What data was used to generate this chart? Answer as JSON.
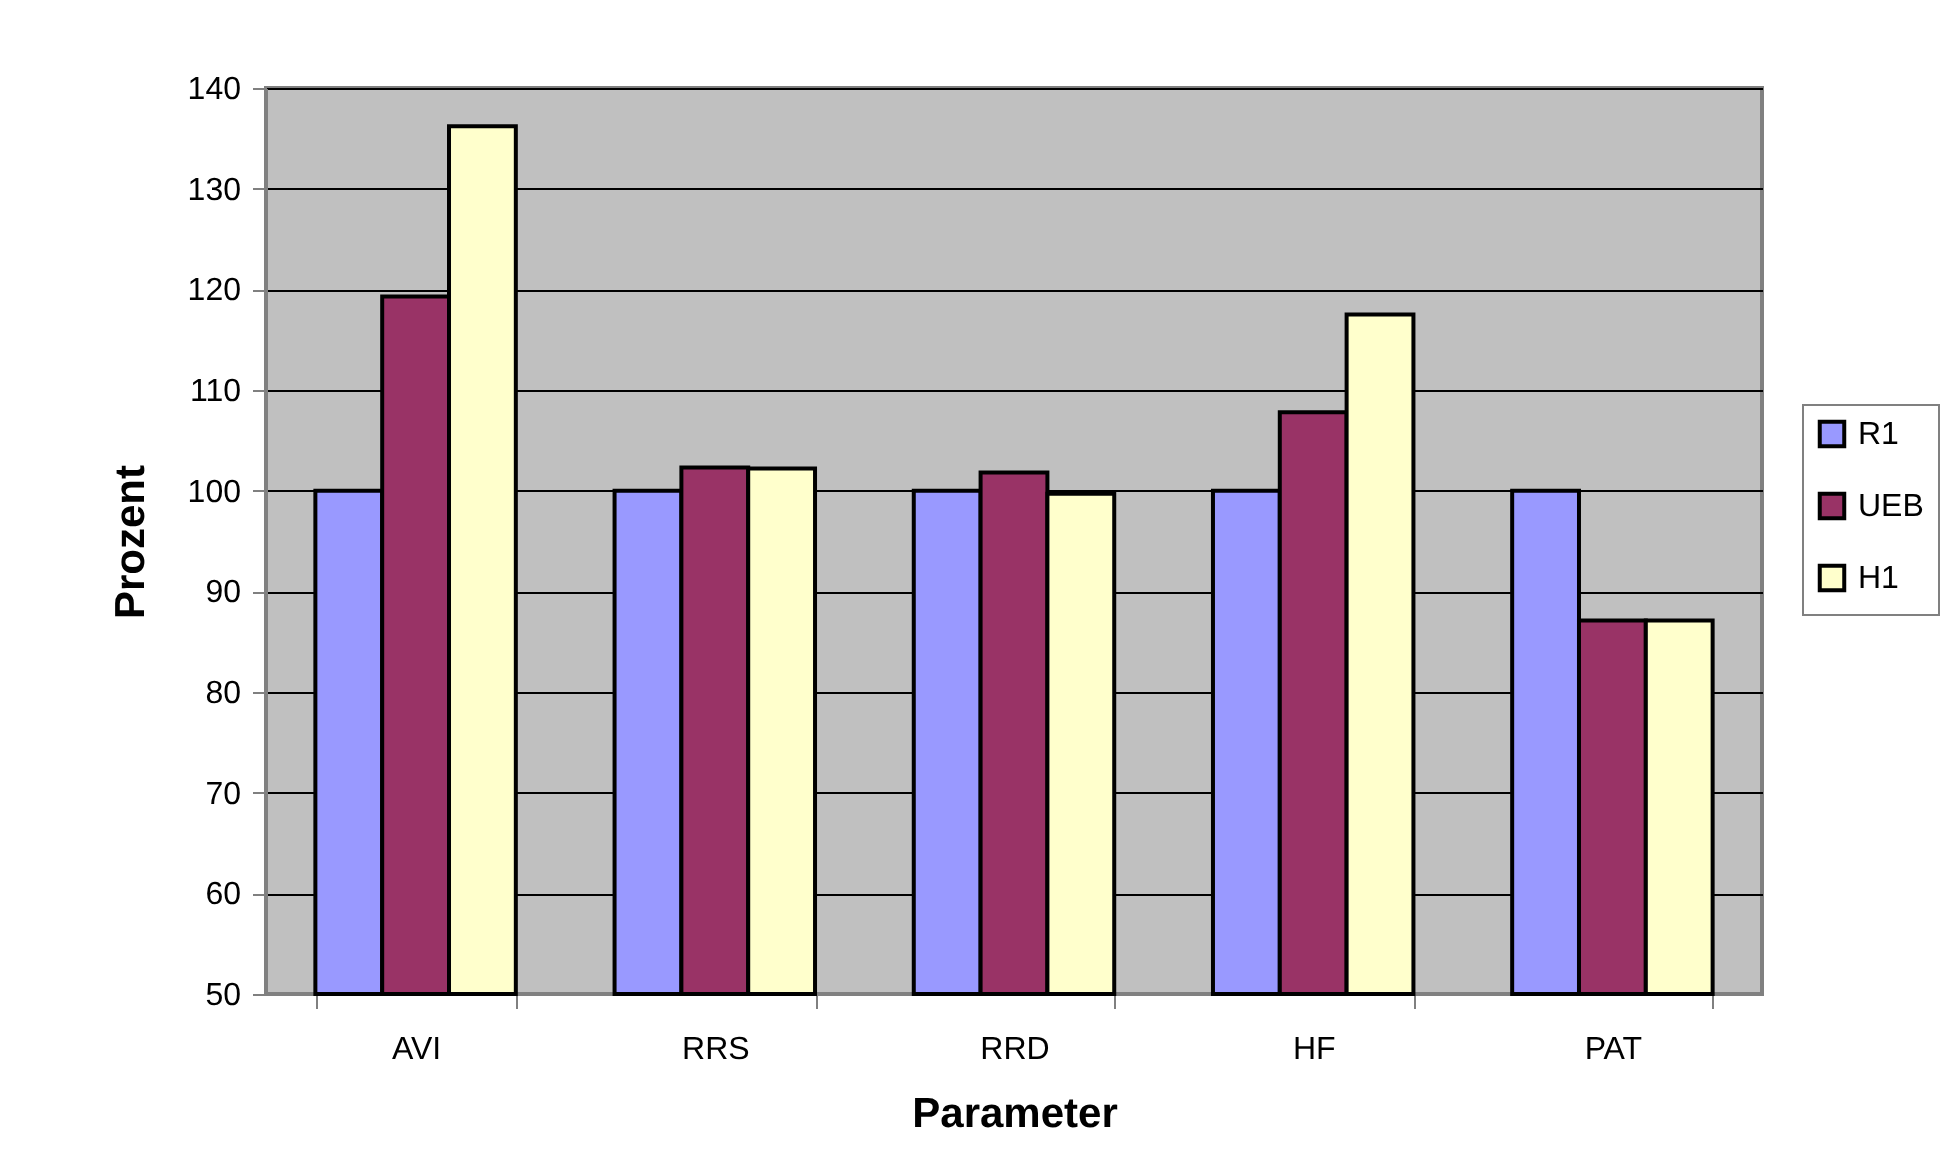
{
  "chart_data": {
    "type": "bar",
    "xlabel": "Parameter",
    "ylabel": "Prozent",
    "categories": [
      "AVI",
      "RRS",
      "RRD",
      "HF",
      "PAT"
    ],
    "series": [
      {
        "name": "R1",
        "color": "#9999ff",
        "values": [
          100,
          100,
          100,
          100,
          100
        ]
      },
      {
        "name": "UEB",
        "color": "#993366",
        "values": [
          119.3,
          102.3,
          101.8,
          107.8,
          87.1
        ]
      },
      {
        "name": "H1",
        "color": "#ffffcc",
        "values": [
          136.2,
          102.2,
          99.7,
          117.5,
          87.1
        ]
      }
    ],
    "ylim": [
      50,
      140
    ],
    "yticks": [
      50,
      60,
      70,
      80,
      90,
      100,
      110,
      120,
      130,
      140
    ],
    "grid": "y",
    "legend": "right"
  }
}
